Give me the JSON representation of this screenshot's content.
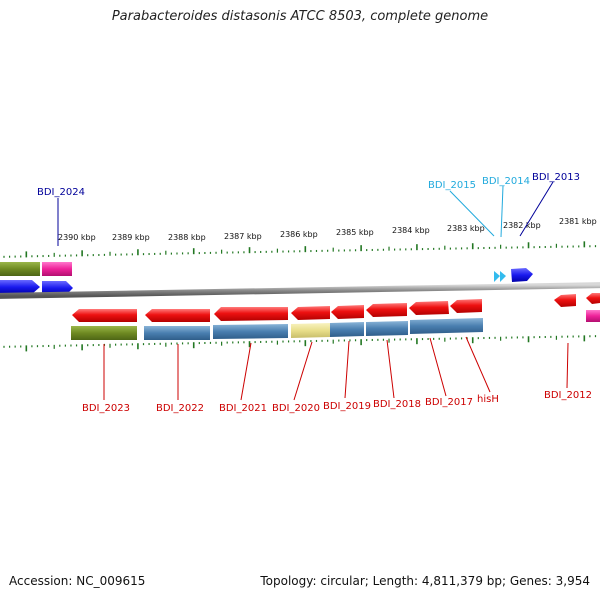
{
  "title": "Parabacteroides distasonis ATCC 8503, complete genome",
  "footer": {
    "accession": "Accession: NC_009615",
    "summary": "Topology: circular; Length: 4,811,379 bp; Genes: 3,954"
  },
  "ruler": {
    "ticks": [
      {
        "label": "2390 kbp"
      },
      {
        "label": "2389 kbp"
      },
      {
        "label": "2388 kbp"
      },
      {
        "label": "2387 kbp"
      },
      {
        "label": "2386 kbp"
      },
      {
        "label": "2385 kbp"
      },
      {
        "label": "2384 kbp"
      },
      {
        "label": "2383 kbp"
      },
      {
        "label": "2382 kbp"
      },
      {
        "label": "2381 kbp"
      }
    ]
  },
  "colors": {
    "red": "#ee1111",
    "blue": "#1a1aee",
    "olive": "#6f8a22",
    "steel": "#4a7fb0",
    "pink": "#ee2299",
    "cyan": "#33bbee",
    "khaki": "#e8de8a",
    "gray_track": "#8a8a8a",
    "tick_green": "#227722",
    "label_red": "#cc0000",
    "label_navy": "#000099",
    "label_cyan": "#22aadd"
  },
  "genes": {
    "bottom": [
      {
        "label": "BDI_2023"
      },
      {
        "label": "BDI_2022"
      },
      {
        "label": "BDI_2021"
      },
      {
        "label": "BDI_2020"
      },
      {
        "label": "BDI_2019"
      },
      {
        "label": "BDI_2018"
      },
      {
        "label": "BDI_2017"
      },
      {
        "label": "hisH"
      },
      {
        "label": "BDI_2012"
      }
    ],
    "top": [
      {
        "label": "BDI_2024"
      },
      {
        "label": "BDI_2015"
      },
      {
        "label": "BDI_2014"
      },
      {
        "label": "BDI_2013"
      }
    ]
  }
}
